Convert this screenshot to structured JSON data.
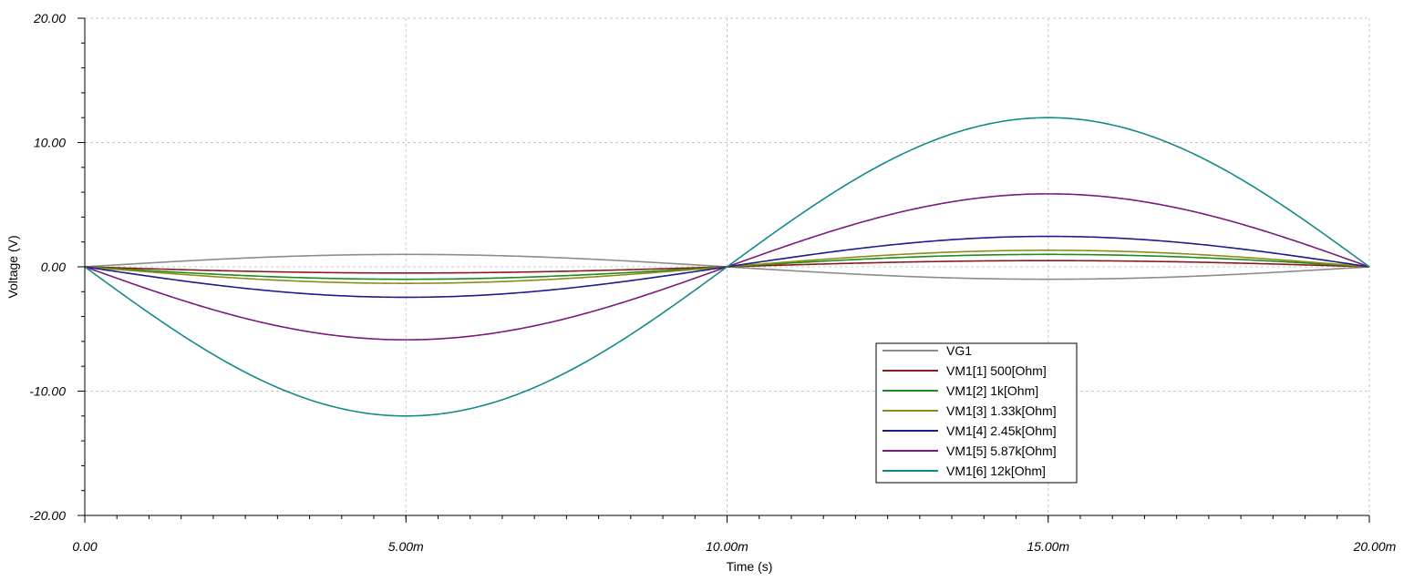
{
  "chart_data": {
    "type": "line",
    "xlabel": "Time (s)",
    "ylabel": "Voltage (V)",
    "xlim": [
      0,
      0.02
    ],
    "ylim": [
      -20,
      20
    ],
    "x_ticks": [
      {
        "value": 0,
        "label": "0.00"
      },
      {
        "value": 0.005,
        "label": "5.00m"
      },
      {
        "value": 0.01,
        "label": "10.00m"
      },
      {
        "value": 0.015,
        "label": "15.00m"
      },
      {
        "value": 0.02,
        "label": "20.00m"
      }
    ],
    "y_ticks": [
      {
        "value": 20,
        "label": "20.00"
      },
      {
        "value": 10,
        "label": "10.00"
      },
      {
        "value": 0,
        "label": "0.00"
      },
      {
        "value": -10,
        "label": "-10.00"
      },
      {
        "value": -20,
        "label": "-20.00"
      }
    ],
    "grid": true,
    "legend_position": "bottom-center",
    "series": [
      {
        "name": "VG1",
        "color": "#8c8c8c",
        "amplitude": 1.0,
        "sign": 1
      },
      {
        "name": "VM1[1]  500[Ohm]",
        "color": "#8b1a1a",
        "amplitude": 0.5,
        "sign": -1
      },
      {
        "name": "VM1[2]  1k[Ohm]",
        "color": "#1f8a1f",
        "amplitude": 1.0,
        "sign": -1
      },
      {
        "name": "VM1[3]  1.33k[Ohm]",
        "color": "#8c8c14",
        "amplitude": 1.33,
        "sign": -1
      },
      {
        "name": "VM1[4]  2.45k[Ohm]",
        "color": "#1c1c8c",
        "amplitude": 2.45,
        "sign": -1
      },
      {
        "name": "VM1[5]  5.87k[Ohm]",
        "color": "#7a1a7a",
        "amplitude": 5.87,
        "sign": -1
      },
      {
        "name": "VM1[6]  12k[Ohm]",
        "color": "#138a8a",
        "amplitude": 12.0,
        "sign": -1
      }
    ],
    "frequency_hz": 50
  }
}
